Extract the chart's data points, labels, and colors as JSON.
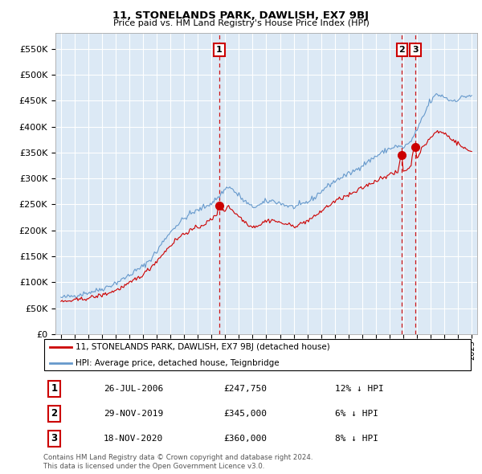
{
  "title": "11, STONELANDS PARK, DAWLISH, EX7 9BJ",
  "subtitle": "Price paid vs. HM Land Registry's House Price Index (HPI)",
  "legend_line1": "11, STONELANDS PARK, DAWLISH, EX7 9BJ (detached house)",
  "legend_line2": "HPI: Average price, detached house, Teignbridge",
  "sale_color": "#cc0000",
  "hpi_color": "#6699cc",
  "chart_bg": "#dce9f5",
  "annotation_color": "#cc0000",
  "dashed_color": "#cc0000",
  "ylim": [
    0,
    580000
  ],
  "yticks": [
    0,
    50000,
    100000,
    150000,
    200000,
    250000,
    300000,
    350000,
    400000,
    450000,
    500000,
    550000
  ],
  "ytick_labels": [
    "£0",
    "£50K",
    "£100K",
    "£150K",
    "£200K",
    "£250K",
    "£300K",
    "£350K",
    "£400K",
    "£450K",
    "£500K",
    "£550K"
  ],
  "sale_dates": [
    2006.57,
    2019.91,
    2020.88
  ],
  "sale_prices": [
    247750,
    345000,
    360000
  ],
  "sale_labels": [
    "1",
    "2",
    "3"
  ],
  "table_data": [
    [
      "1",
      "26-JUL-2006",
      "£247,750",
      "12% ↓ HPI"
    ],
    [
      "2",
      "29-NOV-2019",
      "£345,000",
      "6% ↓ HPI"
    ],
    [
      "3",
      "18-NOV-2020",
      "£360,000",
      "8% ↓ HPI"
    ]
  ],
  "footnote": "Contains HM Land Registry data © Crown copyright and database right 2024.\nThis data is licensed under the Open Government Licence v3.0.",
  "vline_dates": [
    2006.57,
    2019.91,
    2020.88
  ],
  "xlim_start": 1994.6,
  "xlim_end": 2025.4
}
